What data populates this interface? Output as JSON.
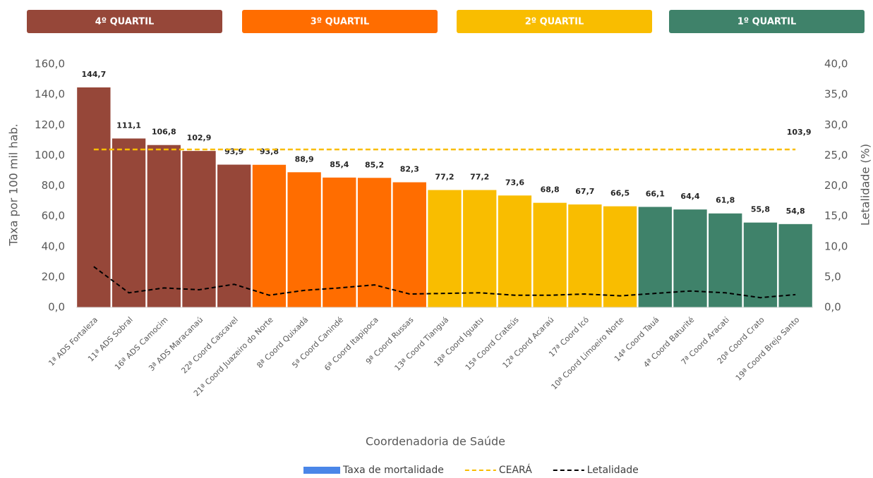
{
  "chart_data": {
    "type": "bar",
    "quartiles": [
      {
        "label": "4º QUARTIL",
        "color": "#964739"
      },
      {
        "label": "3º QUARTIL",
        "color": "#ff6d00"
      },
      {
        "label": "2º QUARTIL",
        "color": "#f9bd00"
      },
      {
        "label": "1º QUARTIL",
        "color": "#3f826a"
      }
    ],
    "categories": [
      "1ª ADS Fortaleza",
      "11ª ADS Sobral",
      "16ª ADS Camocim",
      "3ª ADS Maracanaú",
      "22ª Coord Cascavel",
      "21ª Coord Juazeiro do Norte",
      "8ª Coord Quixadá",
      "5ª Coord Canindé",
      "6ª Coord Itapipoca",
      "9ª Coord Russas",
      "13ª Coord Tianguá",
      "18ª Coord Iguatu",
      "15ª Coord Crateús",
      "12ª Coord Acaraú",
      "17ª Coord Icó",
      "10ª Coord Limoeiro Norte",
      "14ª Coord Tauá",
      "4ª Coord Baturité",
      "7ª Coord Aracati",
      "20ª Coord Crato",
      "19ª Coord Brejo Santo"
    ],
    "series": [
      {
        "name": "Taxa de mortalidade",
        "type": "bar",
        "color": "#4a86e8",
        "values": [
          144.7,
          111.1,
          106.8,
          102.9,
          93.9,
          93.8,
          88.9,
          85.4,
          85.2,
          82.3,
          77.2,
          77.2,
          73.6,
          68.8,
          67.7,
          66.5,
          66.1,
          64.4,
          61.8,
          55.8,
          54.8
        ],
        "value_labels": [
          "144,7",
          "111,1",
          "106,8",
          "102,9",
          "93,9",
          "93,8",
          "88,9",
          "85,4",
          "85,2",
          "82,3",
          "77,2",
          "77,2",
          "73,6",
          "68,8",
          "67,7",
          "66,5",
          "66,1",
          "64,4",
          "61,8",
          "55,8",
          "54,8"
        ],
        "colors": [
          "#964739",
          "#964739",
          "#964739",
          "#964739",
          "#964739",
          "#ff6d00",
          "#ff6d00",
          "#ff6d00",
          "#ff6d00",
          "#ff6d00",
          "#f9bd00",
          "#f9bd00",
          "#f9bd00",
          "#f9bd00",
          "#f9bd00",
          "#f9bd00",
          "#3f826a",
          "#3f826a",
          "#3f826a",
          "#3f826a",
          "#3f826a"
        ]
      },
      {
        "name": "CEARÁ",
        "type": "reference",
        "color": "#f9bd00",
        "value": 103.9,
        "value_label": "103,9"
      },
      {
        "name": "Letalidade",
        "type": "line",
        "axis": "y2",
        "color": "#000000",
        "values": [
          6.7,
          2.4,
          3.2,
          2.9,
          3.8,
          2.0,
          2.8,
          3.2,
          3.7,
          2.2,
          2.3,
          2.4,
          2.0,
          2.0,
          2.2,
          1.9,
          2.3,
          2.7,
          2.4,
          1.6,
          2.1
        ]
      }
    ],
    "x_label": "Coordenadoria de Saúde",
    "y_label": "Taxa por 100 mil hab.",
    "y2_label": "Letalidade (%)",
    "ylim": [
      0,
      160
    ],
    "yticks": [
      {
        "value": 0,
        "label": "0,0"
      },
      {
        "value": 20,
        "label": "20,0"
      },
      {
        "value": 40,
        "label": "40,0"
      },
      {
        "value": 60,
        "label": "60,0"
      },
      {
        "value": 80,
        "label": "80,0"
      },
      {
        "value": 100,
        "label": "100,0"
      },
      {
        "value": 120,
        "label": "120,0"
      },
      {
        "value": 140,
        "label": "140,0"
      },
      {
        "value": 160,
        "label": "160,0"
      }
    ],
    "y2lim": [
      0,
      40
    ],
    "y2ticks": [
      {
        "value": 0,
        "label": "0,0"
      },
      {
        "value": 5,
        "label": "5,0"
      },
      {
        "value": 10,
        "label": "10,0"
      },
      {
        "value": 15,
        "label": "15,0"
      },
      {
        "value": 20,
        "label": "20,0"
      },
      {
        "value": 25,
        "label": "25,0"
      },
      {
        "value": 30,
        "label": "30,0"
      },
      {
        "value": 35,
        "label": "35,0"
      },
      {
        "value": 40,
        "label": "40,0"
      }
    ],
    "grid": false,
    "legend": "bottom"
  }
}
